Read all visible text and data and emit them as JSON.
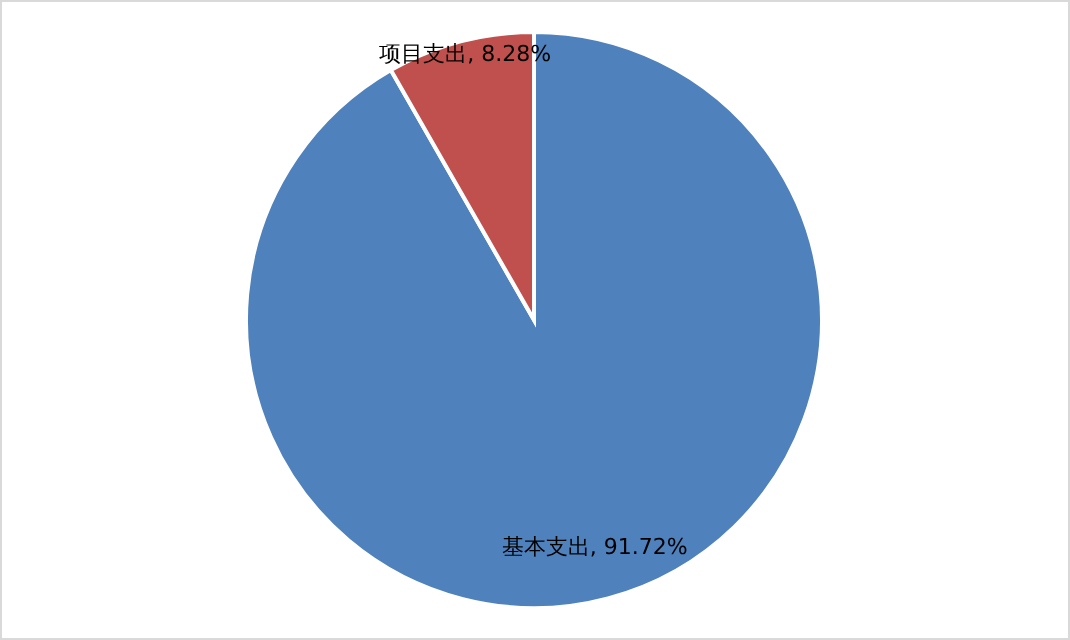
{
  "chart_data": {
    "type": "pie",
    "categories": [
      "基本支出",
      "项目支出"
    ],
    "values": [
      91.72,
      8.28
    ],
    "colors": [
      "#4f81bd",
      "#c0504d"
    ],
    "value_labels": [
      "91.72%",
      "8.28%"
    ],
    "legend": false
  }
}
